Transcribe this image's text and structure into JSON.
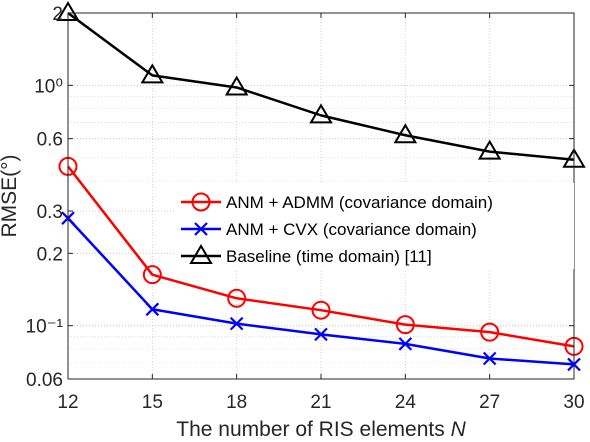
{
  "chart_data": {
    "type": "line",
    "title": "",
    "xlabel": "The number of RIS elements ",
    "xlabel_var": "N",
    "ylabel": "RMSE(°)",
    "x": [
      12,
      15,
      18,
      21,
      24,
      27,
      30
    ],
    "xlim": [
      12,
      30
    ],
    "x_ticks": [
      "12",
      "15",
      "18",
      "21",
      "24",
      "27",
      "30"
    ],
    "yscale": "log",
    "ylim": [
      0.06,
      2
    ],
    "y_ticks": [
      {
        "value": 0.06,
        "label": "0.06"
      },
      {
        "value": 0.1,
        "label": "10⁻¹"
      },
      {
        "value": 0.2,
        "label": "0.2"
      },
      {
        "value": 0.3,
        "label": "0.3"
      },
      {
        "value": 0.6,
        "label": "0.6"
      },
      {
        "value": 1.0,
        "label": "10⁰"
      },
      {
        "value": 2.0,
        "label": "2"
      }
    ],
    "grid": true,
    "legend_position": "center-right",
    "series": [
      {
        "name": "ANM + ADMM (covariance domain)",
        "color": "#ff0000",
        "marker": "circle",
        "values": [
          0.46,
          0.163,
          0.13,
          0.116,
          0.101,
          0.094,
          0.082
        ]
      },
      {
        "name": "ANM + CVX (covariance domain)",
        "color": "#0000ff",
        "marker": "x",
        "values": [
          0.28,
          0.117,
          0.102,
          0.092,
          0.084,
          0.073,
          0.069
        ]
      },
      {
        "name": "Baseline (time domain) [11]",
        "color": "#000000",
        "marker": "triangle",
        "values": [
          2.0,
          1.1,
          0.98,
          0.75,
          0.62,
          0.53,
          0.49
        ]
      }
    ]
  }
}
